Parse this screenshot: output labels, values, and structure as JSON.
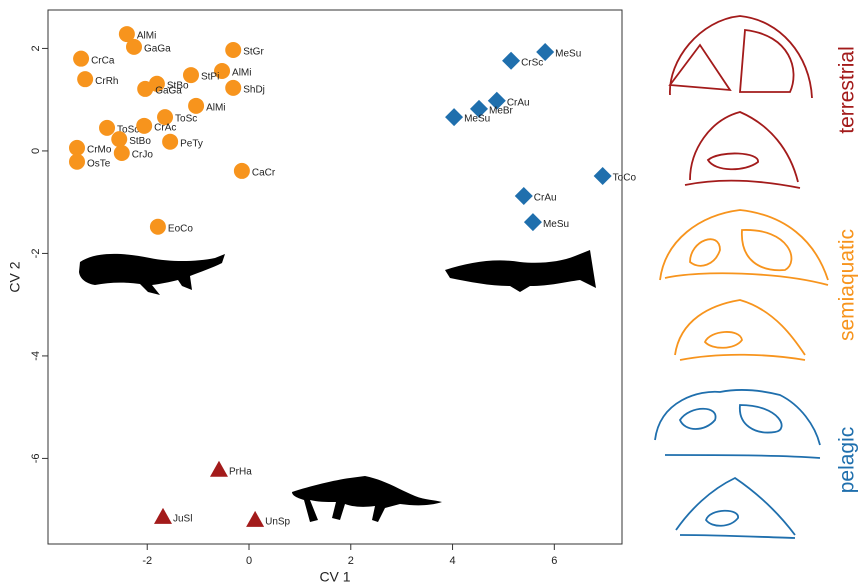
{
  "chart_data": {
    "type": "scatter",
    "xlabel": "CV 1",
    "ylabel": "CV 2",
    "xlim": [
      -3.95,
      7.33
    ],
    "ylim": [
      -7.67,
      2.75
    ],
    "xticks": [
      -2,
      0,
      2,
      4,
      6
    ],
    "yticks": [
      -6,
      -4,
      -2,
      0,
      2
    ],
    "series": [
      {
        "name": "terrestrial",
        "color": "#a31b1b",
        "marker": "triangle",
        "x": [
          -0.59,
          -1.69,
          0.12
        ],
        "values": [
          -6.22,
          -7.14,
          -7.2
        ],
        "point_labels": [
          "PrHa",
          "JuSl",
          "UnSp"
        ]
      },
      {
        "name": "semiaquatic",
        "color": "#f7941d",
        "marker": "circle",
        "x": [
          -2.4,
          -2.26,
          -3.3,
          -0.31,
          -3.22,
          -0.53,
          -1.81,
          -1.14,
          -2.04,
          -0.31,
          -1.04,
          -1.65,
          -2.79,
          -2.55,
          -2.06,
          -1.55,
          -3.38,
          -3.38,
          -2.5,
          -0.14,
          -1.79
        ],
        "values": [
          2.28,
          2.03,
          1.8,
          1.97,
          1.4,
          1.56,
          1.31,
          1.48,
          1.21,
          1.23,
          0.88,
          0.66,
          0.45,
          0.23,
          0.49,
          0.18,
          0.06,
          -0.21,
          -0.04,
          -0.39,
          -1.48
        ],
        "point_labels": [
          "AlMi",
          "GaGa",
          "CrCa",
          "StGr",
          "CrRh",
          "AlMi",
          "StBo",
          "StPi",
          "GaGa",
          "ShDj",
          "AlMi",
          "ToSc",
          "ToSc",
          "StBo",
          "CrAc",
          "PeTy",
          "CrMo",
          "OsTe",
          "CrJo",
          "CaCr",
          "EoCo"
        ]
      },
      {
        "name": "pelagic",
        "color": "#1f6fad",
        "marker": "diamond",
        "x": [
          5.82,
          5.15,
          4.87,
          4.52,
          4.03,
          6.95,
          5.4,
          5.58
        ],
        "values": [
          1.93,
          1.76,
          0.98,
          0.82,
          0.66,
          -0.49,
          -0.88,
          -1.39
        ],
        "point_labels": [
          "MeSu",
          "CrSc",
          "CrAu",
          "MeBr",
          "MeSu",
          "ToCo",
          "CrAu",
          "MeSu"
        ]
      }
    ]
  }
}
